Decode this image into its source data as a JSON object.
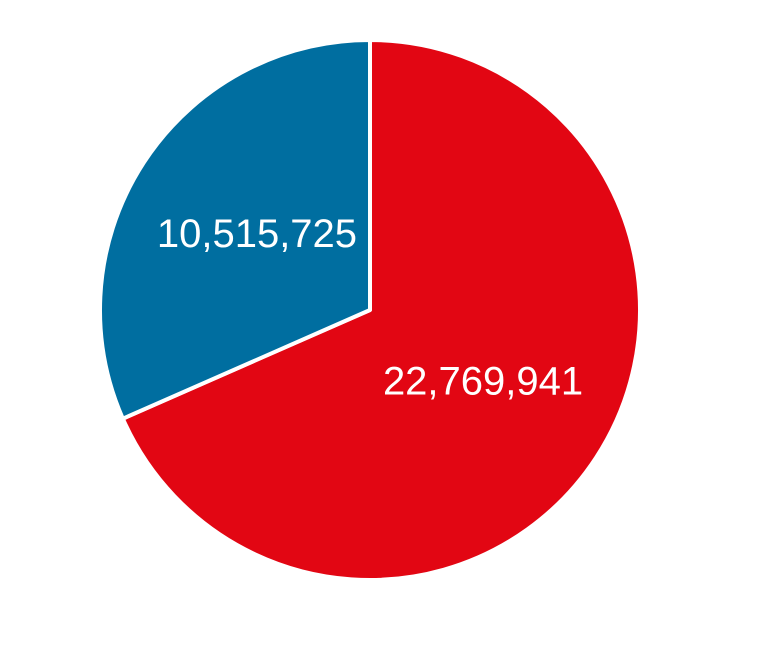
{
  "chart_data": {
    "type": "pie",
    "values": [
      22769941,
      10515725
    ],
    "value_labels": [
      "22,769,941",
      "10,515,725"
    ],
    "colors": [
      "#e20613",
      "#006ea0"
    ],
    "start_angle": 0,
    "direction": "clockwise"
  }
}
